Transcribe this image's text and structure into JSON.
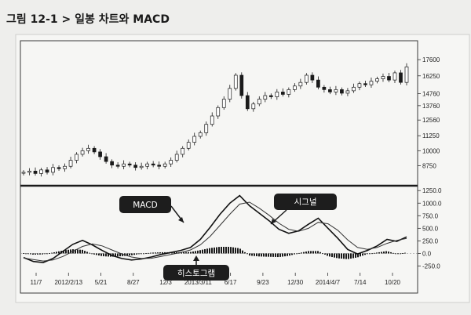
{
  "figure_title": "그림 12-1 > 일봉 차트와 MACD",
  "chart_data": [
    {
      "type": "candlestick",
      "y_ticks": [
        "17600",
        "16250",
        "14760",
        "13760",
        "12560",
        "11250",
        "10000",
        "8750"
      ],
      "ylim": [
        7800,
        18000
      ],
      "axis_side": "right",
      "grid": false,
      "closes": [
        8200,
        8300,
        8100,
        8400,
        8200,
        8600,
        8500,
        8700,
        9200,
        9700,
        10000,
        10200,
        9900,
        9500,
        9100,
        8800,
        8700,
        8900,
        8800,
        8600,
        8700,
        8900,
        8800,
        8700,
        8900,
        9200,
        9700,
        10200,
        10700,
        11200,
        11500,
        12200,
        12900,
        13600,
        14300,
        15200,
        16300,
        14600,
        13500,
        13900,
        14300,
        14600,
        14500,
        14900,
        14700,
        15100,
        15400,
        15700,
        16300,
        15900,
        15300,
        15100,
        14900,
        15100,
        14800,
        15000,
        15300,
        15600,
        15500,
        15800,
        16000,
        16200,
        15900,
        16500,
        15700,
        17000
      ]
    },
    {
      "type": "macd",
      "y_ticks": [
        "1250.0",
        "1000.0",
        "750.0",
        "500.0",
        "250.0",
        "0.0",
        "-250.0"
      ],
      "ylim": [
        -320,
        1300
      ],
      "axis_side": "right",
      "series": [
        {
          "name": "MACD",
          "values": [
            -80,
            -160,
            -180,
            -100,
            40,
            180,
            260,
            170,
            60,
            -40,
            -100,
            -130,
            -110,
            -70,
            -20,
            20,
            60,
            120,
            280,
            520,
            780,
            1000,
            1150,
            950,
            800,
            650,
            480,
            400,
            450,
            580,
            700,
            500,
            300,
            80,
            -10,
            60,
            150,
            280,
            240,
            330
          ]
        },
        {
          "name": "시그널",
          "values": [
            -90,
            -120,
            -150,
            -130,
            -60,
            40,
            140,
            190,
            150,
            70,
            -10,
            -70,
            -100,
            -95,
            -60,
            -20,
            20,
            70,
            170,
            340,
            560,
            780,
            980,
            1020,
            900,
            760,
            600,
            480,
            440,
            500,
            620,
            590,
            460,
            270,
            120,
            80,
            120,
            200,
            260,
            300
          ]
        }
      ],
      "histogram_label": "히스토그램",
      "callouts": [
        "MACD",
        "시그널",
        "히스토그램"
      ]
    }
  ],
  "x_ticks": [
    "11/7",
    "2012/2/13",
    "5/21",
    "8/27",
    "12/3",
    "2013/3/11",
    "6/17",
    "9/23",
    "12/30",
    "2014/4/7",
    "7/14",
    "10/20"
  ]
}
